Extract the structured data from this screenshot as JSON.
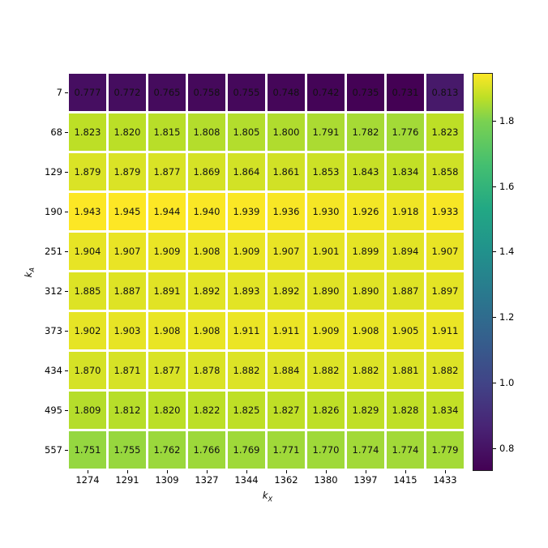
{
  "chart_data": {
    "type": "heatmap",
    "title": "",
    "xlabel": "k_X",
    "ylabel": "k_A",
    "x_categories": [
      "1274",
      "1291",
      "1309",
      "1327",
      "1344",
      "1362",
      "1380",
      "1397",
      "1415",
      "1433"
    ],
    "y_categories": [
      "7",
      "68",
      "129",
      "190",
      "251",
      "312",
      "373",
      "434",
      "495",
      "557"
    ],
    "values": [
      [
        0.777,
        0.772,
        0.765,
        0.758,
        0.755,
        0.748,
        0.742,
        0.735,
        0.731,
        0.813
      ],
      [
        1.823,
        1.82,
        1.815,
        1.808,
        1.805,
        1.8,
        1.791,
        1.782,
        1.776,
        1.823
      ],
      [
        1.879,
        1.879,
        1.877,
        1.869,
        1.864,
        1.861,
        1.853,
        1.843,
        1.834,
        1.858
      ],
      [
        1.943,
        1.945,
        1.944,
        1.94,
        1.939,
        1.936,
        1.93,
        1.926,
        1.918,
        1.933
      ],
      [
        1.904,
        1.907,
        1.909,
        1.908,
        1.909,
        1.907,
        1.901,
        1.899,
        1.894,
        1.907
      ],
      [
        1.885,
        1.887,
        1.891,
        1.892,
        1.893,
        1.892,
        1.89,
        1.89,
        1.887,
        1.897
      ],
      [
        1.902,
        1.903,
        1.908,
        1.908,
        1.911,
        1.911,
        1.909,
        1.908,
        1.905,
        1.911
      ],
      [
        1.87,
        1.871,
        1.877,
        1.878,
        1.882,
        1.884,
        1.882,
        1.882,
        1.881,
        1.882
      ],
      [
        1.809,
        1.812,
        1.82,
        1.822,
        1.825,
        1.827,
        1.826,
        1.829,
        1.828,
        1.834
      ],
      [
        1.751,
        1.755,
        1.762,
        1.766,
        1.769,
        1.771,
        1.77,
        1.774,
        1.774,
        1.779
      ]
    ],
    "colormap": "viridis",
    "colorbar": {
      "ticks": [
        "0.8",
        "1.0",
        "1.2",
        "1.4",
        "1.6",
        "1.8"
      ],
      "range": [
        0.731,
        1.945
      ]
    },
    "annotations": "cell values shown with 3 decimals",
    "grid": false,
    "legend": "colorbar on right"
  },
  "labels": {
    "xlabel_main": "k",
    "xlabel_sub": "X",
    "ylabel_main": "k",
    "ylabel_sub": "A"
  }
}
